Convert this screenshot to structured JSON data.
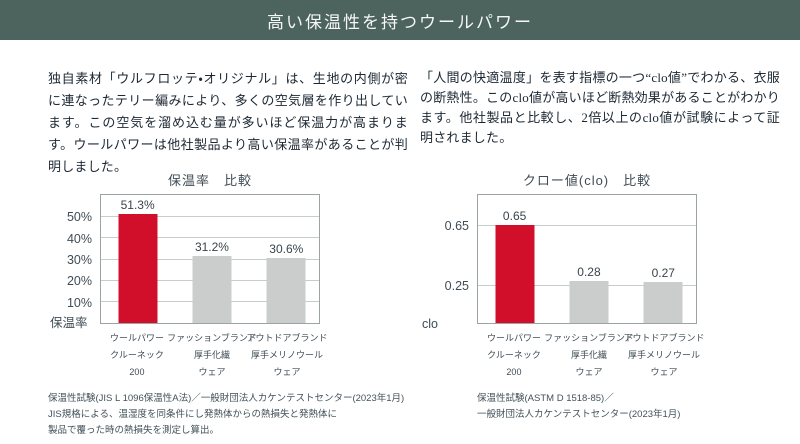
{
  "header": {
    "title": "高い保温性を持つウールパワー"
  },
  "intro": {
    "left_paragraph": "独自素材「ウルフロッテ・オリジナル」は、生地の内側が密に連なったテリー編みにより、多くの空気層を作り出しています。この空気を溜め込む量が多いほど保温力が高まります。ウールパワーは他社製品より高い保温率があることが判明しました。",
    "right_paragraph": "「人間の快適温度」を表す指標の一つ“clo値”でわかる、衣服の断熱性。このclo値が高いほど断熱効果があることがわかります。他社製品と比較し、2倍以上のclo値が試験によって証明されました。"
  },
  "colors": {
    "header_bg": "#4d635d",
    "highlight_red": "#d20f2b",
    "bar_grey": "#cacdcc",
    "grid_line": "#c6cecd",
    "plot_border": "#9ba4a3",
    "body_text": "#1c2833",
    "chart_text": "#3f4c54",
    "footnote_text": "#42525a"
  },
  "chart_data": [
    {
      "type": "bar",
      "title": "保温率　比較",
      "ylabel": "保温率",
      "ylim": [
        0,
        60
      ],
      "grid": true,
      "yticks": [
        {
          "value": 50,
          "label": "50%"
        },
        {
          "value": 40,
          "label": "40%"
        },
        {
          "value": 30,
          "label": "30%"
        },
        {
          "value": 20,
          "label": "20%"
        },
        {
          "value": 10,
          "label": "10%"
        }
      ],
      "categories": [
        [
          "ウールパワー",
          "クルーネック",
          "200"
        ],
        [
          "ファッションブランド",
          "厚手化繊",
          "ウェア"
        ],
        [
          "アウトドアブランド",
          "厚手メリノウール",
          "ウェア"
        ]
      ],
      "values": [
        51.3,
        31.2,
        30.6
      ],
      "value_labels": [
        "51.3%",
        "31.2%",
        "30.6%"
      ],
      "bar_colors": [
        "#d20f2b",
        "#cacdcc",
        "#cacdcc"
      ],
      "footnotes": [
        "保温性試験(JIS L 1096保温性A法)／一般財団法人カケンテストセンター(2023年1月)",
        "JIS規格による、温湿度を同条件にし発熱体からの熱損失と発熱体に",
        "製品で覆った時の熱損失を測定し算出。"
      ]
    },
    {
      "type": "bar",
      "title": "クロー値(clo)　比較",
      "ylabel": "clo",
      "ylim": [
        0,
        0.85
      ],
      "grid": true,
      "yticks": [
        {
          "value": 0.65,
          "label": "0.65"
        },
        {
          "value": 0.25,
          "label": "0.25"
        }
      ],
      "categories": [
        [
          "ウールパワー",
          "クルーネック",
          "200"
        ],
        [
          "ファッションブランド",
          "厚手化繊",
          "ウェア"
        ],
        [
          "アウトドアブランド",
          "厚手メリノウール",
          "ウェア"
        ]
      ],
      "values": [
        0.65,
        0.28,
        0.27
      ],
      "value_labels": [
        "0.65",
        "0.28",
        "0.27"
      ],
      "bar_colors": [
        "#d20f2b",
        "#cacdcc",
        "#cacdcc"
      ],
      "footnotes": [
        "保温性試験(ASTM D 1518-85)／",
        "一般財団法人カケンテストセンター(2023年1月)"
      ]
    }
  ]
}
